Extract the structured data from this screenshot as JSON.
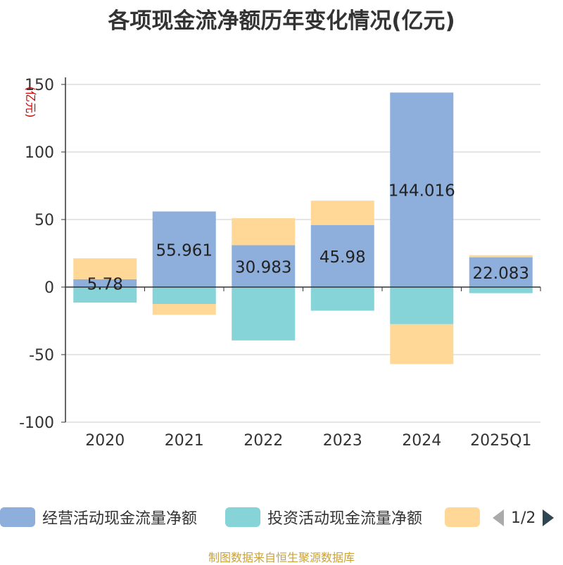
{
  "title": "各项现金流净额历年变化情况(亿元)",
  "source": "制图数据来自恒生聚源数据库",
  "legend_pager": "1/2",
  "colors": {
    "operating": "#8eaedb",
    "investing": "#86d4d8",
    "financing": "#ffd898",
    "grid": "#cccccc",
    "axis": "#333333",
    "yunit": "#cc0000"
  },
  "chart_data": {
    "type": "bar",
    "stacked": true,
    "title": "各项现金流净额历年变化情况(亿元)",
    "ylabel": "(亿元)",
    "ylim": [
      -100,
      150
    ],
    "yticks": [
      150,
      100,
      50,
      0,
      -50,
      -100
    ],
    "categories": [
      "2020",
      "2021",
      "2022",
      "2023",
      "2024",
      "2025Q1"
    ],
    "series": [
      {
        "name": "经营活动现金流量净额",
        "key": "operating",
        "values": [
          5.78,
          55.961,
          30.983,
          45.98,
          144.016,
          22.083
        ],
        "labels": [
          "5.78",
          "55.961",
          "30.983",
          "45.98",
          "144.016",
          "22.083"
        ]
      },
      {
        "name": "投资活动现金流量净额",
        "key": "investing",
        "values": [
          -11.5,
          -12.5,
          -39.5,
          -17.5,
          -27.5,
          -4.5
        ]
      },
      {
        "name": "",
        "key": "financing",
        "values": [
          15.5,
          -8.0,
          20.0,
          18.0,
          -29.5,
          1.5
        ]
      }
    ]
  }
}
